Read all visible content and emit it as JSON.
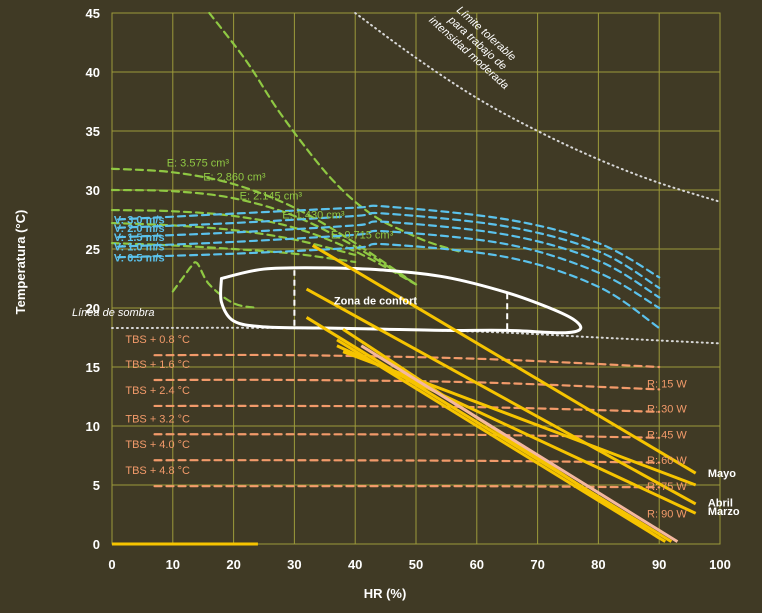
{
  "colors": {
    "background": "#403a25",
    "plot_background": "#403a25",
    "grid": "#9c9a3a",
    "axis_text": "#ffffff",
    "green": "#8fc843",
    "blue": "#5bc2ec",
    "orange": "#f29a6a",
    "yellow": "#f6c400",
    "pink": "#f4b8a0",
    "white": "#ffffff",
    "dotted": "#d8d8d8"
  },
  "chart_data": {
    "type": "line",
    "xlabel": "HR (%)",
    "ylabel": "Temperatura (°C)",
    "xlim": [
      0,
      100
    ],
    "ylim": [
      0,
      45
    ],
    "xticks": [
      "0",
      "10",
      "20",
      "30",
      "40",
      "50",
      "60",
      "70",
      "80",
      "90",
      "100"
    ],
    "yticks": [
      "0",
      "5",
      "10",
      "15",
      "20",
      "25",
      "30",
      "35",
      "40",
      "45"
    ],
    "grid": true,
    "annotations": {
      "tolerable_limit": "Límite tolerable para trabajo de intensidad moderada",
      "shade_line": "Línea de sombra",
      "comfort_zone": "Zona de confort"
    },
    "shade_line": {
      "x": [
        0,
        30,
        60,
        80,
        100
      ],
      "y": [
        18.3,
        18.3,
        18.0,
        17.5,
        17.0
      ]
    },
    "tolerable_limit_curve": {
      "x": [
        40,
        50,
        60,
        70,
        80,
        90,
        100
      ],
      "y": [
        45,
        41.2,
        37.8,
        35.0,
        32.6,
        30.6,
        29.0
      ]
    },
    "comfort_zone": {
      "x": [
        18,
        25,
        35,
        45,
        55,
        65,
        72,
        76,
        77,
        74,
        65,
        55,
        45,
        35,
        25,
        20,
        18,
        18
      ],
      "y": [
        22.5,
        23.3,
        23.4,
        23.2,
        22.6,
        21.3,
        20.0,
        19.0,
        18.2,
        17.9,
        18.1,
        18.1,
        18.2,
        18.3,
        18.4,
        18.9,
        20.5,
        22.5
      ],
      "bounds": [
        {
          "x": 30,
          "y1": 18.5,
          "y2": 23.2
        },
        {
          "x": 65,
          "y1": 18.2,
          "y2": 21.3
        }
      ]
    },
    "evaporative_series": [
      {
        "name": "E: 3.575 cm³",
        "label_x": 9,
        "label_y": 32.0,
        "x": [
          0,
          10,
          20,
          30,
          40,
          50
        ],
        "y": [
          31.8,
          31.5,
          30.5,
          28.5,
          25.5,
          22.0
        ]
      },
      {
        "name": "E: 2.860 cm³",
        "label_x": 15,
        "label_y": 30.8,
        "x": [
          0,
          10,
          20,
          30,
          40,
          50
        ],
        "y": [
          30.0,
          29.9,
          29.3,
          27.8,
          25.2,
          22.0
        ]
      },
      {
        "name": "E: 2.145 cm³",
        "label_x": 21,
        "label_y": 29.2,
        "x": [
          0,
          10,
          20,
          30,
          40,
          50
        ],
        "y": [
          28.3,
          28.2,
          27.8,
          26.8,
          24.8,
          22.0
        ]
      },
      {
        "name": "E: 1.430 cm³",
        "label_x": 28,
        "label_y": 27.6,
        "x": [
          0,
          10,
          20,
          30,
          40
        ],
        "y": [
          27.2,
          27.0,
          26.6,
          25.8,
          24.5
        ]
      },
      {
        "name": "E: 0.715 cm³",
        "label_x": 36,
        "label_y": 25.9,
        "x": [
          0,
          10,
          20,
          30,
          40
        ],
        "y": [
          25.5,
          25.3,
          25.0,
          24.6,
          23.9
        ]
      }
    ],
    "green_shade_curve": {
      "x": [
        16,
        22,
        27,
        32,
        36,
        40,
        44,
        48,
        52,
        57
      ],
      "y": [
        45,
        41,
        37,
        33.5,
        31,
        29,
        27.5,
        26.5,
        25.6,
        24.8
      ]
    },
    "green_low_curve": {
      "x": [
        10,
        12,
        13,
        14,
        16,
        20,
        24
      ],
      "y": [
        21.4,
        22.8,
        23.5,
        23.8,
        22,
        20.4,
        20.0
      ]
    },
    "velocity_series": [
      {
        "name": "V: 3.0 m/s",
        "x": [
          1,
          20,
          40,
          45,
          65,
          80,
          90
        ],
        "y": [
          27.5,
          28.0,
          28.5,
          28.6,
          27.5,
          25.5,
          22.6
        ]
      },
      {
        "name": "V: 2.0 m/s",
        "x": [
          1,
          20,
          40,
          45,
          65,
          80,
          90
        ],
        "y": [
          26.8,
          27.2,
          27.8,
          28.0,
          26.9,
          24.8,
          21.7
        ]
      },
      {
        "name": "V: 1.5 m/s",
        "x": [
          1,
          20,
          40,
          45,
          65,
          80,
          90
        ],
        "y": [
          26.0,
          26.4,
          27.0,
          27.3,
          26.2,
          24.0,
          20.9
        ]
      },
      {
        "name": "V: 1.0 m/s",
        "x": [
          1,
          20,
          40,
          45,
          65,
          80,
          90
        ],
        "y": [
          25.2,
          25.6,
          26.2,
          26.5,
          25.4,
          23.0,
          20.0
        ]
      },
      {
        "name": "V: 0.5 m/s",
        "x": [
          1,
          20,
          40,
          45,
          65,
          80,
          90
        ],
        "y": [
          24.3,
          24.6,
          25.1,
          25.4,
          24.3,
          21.8,
          18.3
        ]
      }
    ],
    "tbs_series": [
      {
        "name": "TBS + 0.8 °C",
        "x": [
          7,
          30,
          60,
          90
        ],
        "y": [
          16.0,
          16.0,
          15.7,
          15.0
        ]
      },
      {
        "name": "TBS + 1.6 °C",
        "x": [
          7,
          30,
          60,
          90
        ],
        "y": [
          13.9,
          13.9,
          13.7,
          13.1
        ]
      },
      {
        "name": "TBS + 2.4 °C",
        "x": [
          7,
          30,
          60,
          90
        ],
        "y": [
          11.7,
          11.7,
          11.6,
          11.2
        ]
      },
      {
        "name": "TBS + 3.2 °C",
        "x": [
          7,
          30,
          60,
          90
        ],
        "y": [
          9.3,
          9.3,
          9.25,
          9.0
        ]
      },
      {
        "name": "TBS + 4.0 °C",
        "x": [
          7,
          30,
          60,
          90
        ],
        "y": [
          7.1,
          7.1,
          7.05,
          6.9
        ]
      },
      {
        "name": "TBS + 4.8 °C",
        "x": [
          7,
          30,
          60,
          90
        ],
        "y": [
          4.9,
          4.9,
          4.9,
          4.8
        ]
      }
    ],
    "radiation_labels": [
      {
        "name": "R: 15 W",
        "x": 88,
        "y": 13.6
      },
      {
        "name": "R: 30 W",
        "x": 88,
        "y": 11.5
      },
      {
        "name": "R: 45 W",
        "x": 88,
        "y": 9.3
      },
      {
        "name": "R: 60 W",
        "x": 88,
        "y": 7.1
      },
      {
        "name": "R: 75 W",
        "x": 88,
        "y": 4.9
      },
      {
        "name": "R: 90 W",
        "x": 88,
        "y": 2.6
      }
    ],
    "month_series": [
      {
        "name": "Mayo",
        "label_x": 98,
        "label_y": 6.0,
        "lines": [
          {
            "x": [
              33,
              96
            ],
            "y": [
              25.3,
              6.0
            ]
          },
          {
            "x": [
              38,
              96
            ],
            "y": [
              16.3,
              5.0
            ]
          }
        ]
      },
      {
        "name": "Abril",
        "label_x": 98,
        "label_y": 3.5,
        "lines": [
          {
            "x": [
              32,
              96
            ],
            "y": [
              21.6,
              3.4
            ]
          },
          {
            "x": [
              37,
              96
            ],
            "y": [
              16.8,
              2.6
            ]
          }
        ]
      },
      {
        "name": "Marzo",
        "label_x": 98,
        "label_y": 2.8,
        "lines": [
          {
            "x": [
              32,
              92
            ],
            "y": [
              19.2,
              0.2
            ]
          },
          {
            "x": [
              37,
              91
            ],
            "y": [
              17.3,
              0.2
            ]
          },
          {
            "x": [
              38,
              90
            ],
            "y": [
              18.2,
              0.5
            ]
          }
        ]
      }
    ],
    "pink_line": {
      "x": [
        41,
        93
      ],
      "y": [
        16.8,
        0.2
      ]
    },
    "baseline_segment": {
      "x": [
        0,
        24
      ],
      "y": [
        0,
        0
      ]
    }
  }
}
